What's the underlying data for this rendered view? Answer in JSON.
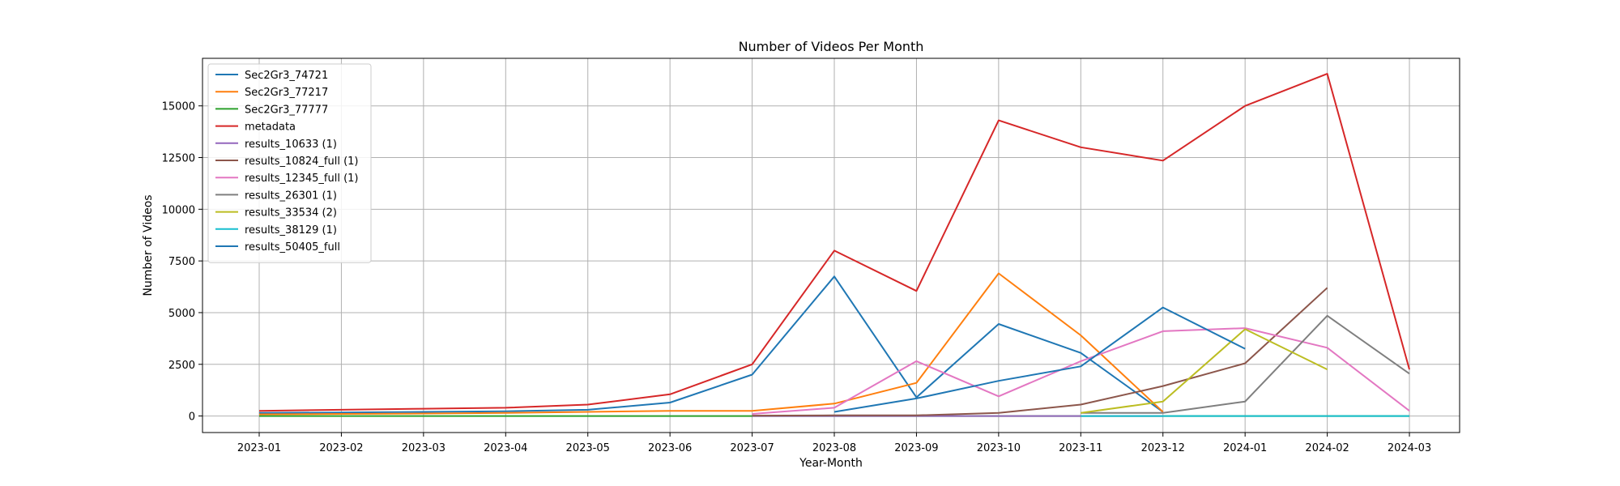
{
  "chart_data": {
    "type": "line",
    "title": "Number of Videos Per Month",
    "xlabel": "Year-Month",
    "ylabel": "Number of Videos",
    "categories": [
      "2023-01",
      "2023-02",
      "2023-03",
      "2023-04",
      "2023-05",
      "2023-06",
      "2023-07",
      "2023-08",
      "2023-09",
      "2023-10",
      "2023-11",
      "2023-12",
      "2024-01",
      "2024-02",
      "2024-03"
    ],
    "yticks": [
      0,
      2500,
      5000,
      7500,
      10000,
      12500,
      15000
    ],
    "ylim": [
      -800,
      17300
    ],
    "grid": true,
    "legend_position": "top-left",
    "series": [
      {
        "name": "Sec2Gr3_74721",
        "color": "#1f77b4",
        "values": [
          150,
          170,
          200,
          230,
          300,
          650,
          2000,
          6750,
          900,
          4450,
          3050,
          200,
          null,
          null,
          null
        ]
      },
      {
        "name": "Sec2Gr3_77217",
        "color": "#ff7f0e",
        "values": [
          80,
          100,
          120,
          150,
          200,
          250,
          250,
          600,
          1600,
          6900,
          3900,
          200,
          null,
          null,
          null
        ]
      },
      {
        "name": "Sec2Gr3_77777",
        "color": "#2ca02c",
        "values": [
          0,
          0,
          0,
          0,
          0,
          0,
          0,
          0,
          0,
          0,
          0,
          0,
          0,
          0,
          0
        ]
      },
      {
        "name": "metadata",
        "color": "#d62728",
        "values": [
          250,
          300,
          350,
          400,
          550,
          1050,
          2500,
          8000,
          6050,
          14300,
          13000,
          12350,
          15000,
          16550,
          2250
        ]
      },
      {
        "name": "results_10633 (1)",
        "color": "#9467bd",
        "values": [
          null,
          null,
          null,
          null,
          null,
          null,
          0,
          0,
          0,
          0,
          0,
          0,
          null,
          null,
          null
        ]
      },
      {
        "name": "results_10824_full (1)",
        "color": "#8c564b",
        "values": [
          null,
          null,
          null,
          null,
          null,
          null,
          20,
          30,
          30,
          150,
          550,
          1450,
          2550,
          6200,
          null
        ]
      },
      {
        "name": "results_12345_full (1)",
        "color": "#e377c2",
        "values": [
          null,
          null,
          null,
          null,
          null,
          null,
          100,
          400,
          2650,
          950,
          2650,
          4100,
          4250,
          3300,
          250
        ]
      },
      {
        "name": "results_26301 (1)",
        "color": "#7f7f7f",
        "values": [
          null,
          null,
          null,
          null,
          null,
          null,
          null,
          null,
          null,
          null,
          150,
          150,
          700,
          4850,
          2050
        ]
      },
      {
        "name": "results_33534 (2)",
        "color": "#bcbd22",
        "values": [
          null,
          null,
          null,
          null,
          null,
          null,
          null,
          null,
          null,
          null,
          150,
          700,
          4200,
          2250,
          null
        ]
      },
      {
        "name": "results_38129 (1)",
        "color": "#17becf",
        "values": [
          null,
          null,
          null,
          null,
          null,
          null,
          null,
          null,
          null,
          null,
          0,
          0,
          0,
          0,
          0
        ]
      },
      {
        "name": "results_50405_full",
        "color": "#1f77b4",
        "values": [
          null,
          null,
          null,
          null,
          null,
          null,
          null,
          200,
          850,
          1700,
          2400,
          5250,
          3250,
          null,
          null
        ]
      }
    ]
  }
}
